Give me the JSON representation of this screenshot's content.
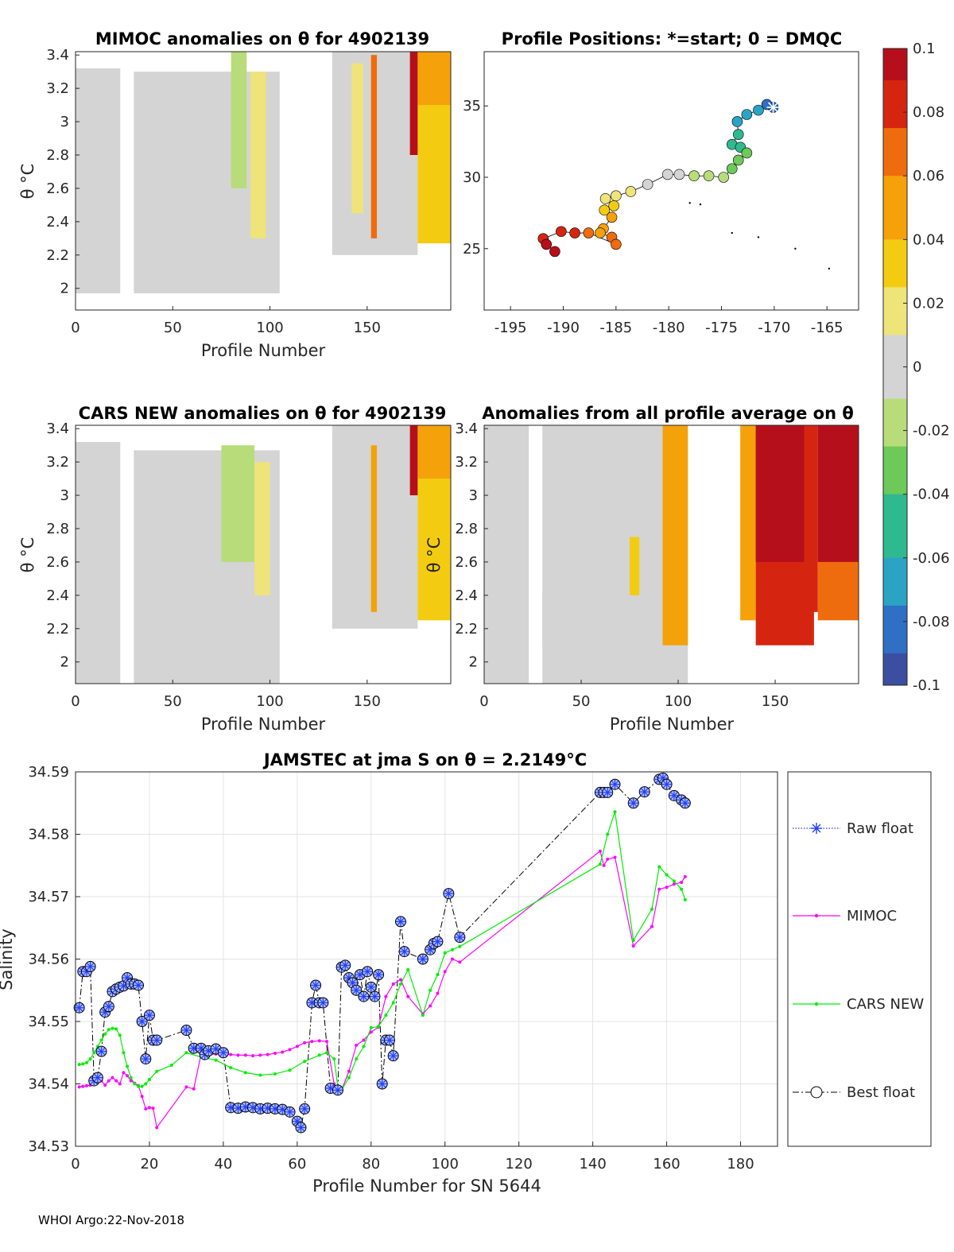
{
  "footer": "WHOI Argo:22-Nov-2018",
  "colors": {
    "raw": "#2340ff",
    "mimoc": "#ff00ff",
    "cars": "#00ee00",
    "best": "#000000",
    "colormap": [
      "#3b4ea0",
      "#2f6fc4",
      "#2aa3c5",
      "#2fb98e",
      "#6cc95a",
      "#b8dc7a",
      "#d4d4d4",
      "#eee47a",
      "#f3cc11",
      "#f5a10a",
      "#ef6c0e",
      "#d52510",
      "#b50f1c"
    ]
  },
  "chart_data": [
    {
      "id": "mimoc",
      "type": "heatmap",
      "title": "MIMOC anomalies on θ  for 4902139",
      "xlabel": "Profile Number",
      "ylabel": "θ °C",
      "xticks": [
        "0",
        "50",
        "100",
        "150"
      ],
      "yticks": [
        "2",
        "2.2",
        "2.4",
        "2.6",
        "2.8",
        "3",
        "3.2",
        "3.4"
      ],
      "xlim": [
        0,
        193
      ],
      "ylim": [
        1.87,
        3.42
      ],
      "blocks": [
        {
          "x": [
            0,
            23
          ],
          "y": [
            1.97,
            3.32
          ],
          "v": 0.0
        },
        {
          "x": [
            3,
            20
          ],
          "y": [
            2.0,
            2.5
          ],
          "v": -0.006
        },
        {
          "x": [
            30,
            105
          ],
          "y": [
            1.97,
            3.3
          ],
          "v": -0.003
        },
        {
          "x": [
            80,
            88
          ],
          "y": [
            2.6,
            3.42
          ],
          "v": -0.012
        },
        {
          "x": [
            90,
            98
          ],
          "y": [
            2.3,
            3.3
          ],
          "v": 0.012
        },
        {
          "x": [
            132,
            176
          ],
          "y": [
            2.2,
            3.42
          ],
          "v": 0.003
        },
        {
          "x": [
            142,
            148
          ],
          "y": [
            2.45,
            3.35
          ],
          "v": 0.015
        },
        {
          "x": [
            152,
            155
          ],
          "y": [
            2.3,
            3.4
          ],
          "v": 0.06
        },
        {
          "x": [
            172,
            176
          ],
          "y": [
            2.8,
            3.42
          ],
          "v": 0.095
        },
        {
          "x": [
            176,
            193
          ],
          "y": [
            2.27,
            3.42
          ],
          "v": 0.04
        },
        {
          "x": [
            176,
            193
          ],
          "y": [
            3.1,
            3.42
          ],
          "v": 0.055
        }
      ]
    },
    {
      "id": "positions",
      "type": "scatter",
      "title": "Profile Positions: *=start; 0 = DMQC",
      "xticks": [
        "-195",
        "-190",
        "-185",
        "-180",
        "-175",
        "-170",
        "-165"
      ],
      "yticks": [
        "25",
        "30",
        "35"
      ],
      "xlim": [
        -197.5,
        -162
      ],
      "ylim": [
        20.7,
        38.8
      ],
      "points": [
        [
          -170.1,
          34.9
        ],
        [
          -170.7,
          35.1
        ],
        [
          -171.5,
          34.7
        ],
        [
          -172.6,
          34.4
        ],
        [
          -173.5,
          33.9
        ],
        [
          -173.4,
          33.0
        ],
        [
          -174,
          32.3
        ],
        [
          -173.2,
          32.1
        ],
        [
          -172.6,
          31.7
        ],
        [
          -173.4,
          31.2
        ],
        [
          -174,
          30.6
        ],
        [
          -174.8,
          30.0
        ],
        [
          -176.2,
          30.1
        ],
        [
          -177.6,
          30.1
        ],
        [
          -179.0,
          30.2
        ],
        [
          -180.1,
          30.2
        ],
        [
          -182.0,
          29.5
        ],
        [
          -183.6,
          29.0
        ],
        [
          -185.0,
          28.7
        ],
        [
          -186.0,
          28.5
        ],
        [
          -185.2,
          28.0
        ],
        [
          -186.1,
          27.7
        ],
        [
          -185.4,
          27.2
        ],
        [
          -186.2,
          26.4
        ],
        [
          -186.5,
          26.1
        ],
        [
          -185.4,
          25.8
        ],
        [
          -185.0,
          25.3
        ],
        [
          -187.6,
          26.1
        ],
        [
          -188.9,
          26.1
        ],
        [
          -190.2,
          26.2
        ],
        [
          -191.9,
          25.7
        ],
        [
          -191.6,
          25.3
        ],
        [
          -190.8,
          24.8
        ]
      ],
      "dots": [
        [
          -178,
          28.2
        ],
        [
          -177,
          28.1
        ],
        [
          -174,
          26.1
        ],
        [
          -171.5,
          25.8
        ],
        [
          -168,
          25.0
        ],
        [
          -164.8,
          23.6
        ]
      ]
    },
    {
      "id": "cars",
      "type": "heatmap",
      "title": "CARS NEW anomalies on θ for 4902139",
      "xlabel": "Profile Number",
      "ylabel": "θ °C",
      "xticks": [
        "0",
        "50",
        "100",
        "150"
      ],
      "yticks": [
        "2",
        "2.2",
        "2.4",
        "2.6",
        "2.8",
        "3",
        "3.2",
        "3.4"
      ],
      "xlim": [
        0,
        193
      ],
      "ylim": [
        1.87,
        3.42
      ],
      "blocks": [
        {
          "x": [
            0,
            23
          ],
          "y": [
            1.87,
            3.32
          ],
          "v": -0.004
        },
        {
          "x": [
            3,
            20
          ],
          "y": [
            2.2,
            3.2
          ],
          "v": -0.007
        },
        {
          "x": [
            30,
            105
          ],
          "y": [
            1.87,
            3.27
          ],
          "v": -0.003
        },
        {
          "x": [
            75,
            92
          ],
          "y": [
            2.6,
            3.3
          ],
          "v": -0.01
        },
        {
          "x": [
            92,
            100
          ],
          "y": [
            2.4,
            3.2
          ],
          "v": 0.012
        },
        {
          "x": [
            132,
            176
          ],
          "y": [
            2.2,
            3.42
          ],
          "v": 0.003
        },
        {
          "x": [
            152,
            155
          ],
          "y": [
            2.3,
            3.3
          ],
          "v": 0.05
        },
        {
          "x": [
            172,
            176
          ],
          "y": [
            3.0,
            3.42
          ],
          "v": 0.095
        },
        {
          "x": [
            176,
            193
          ],
          "y": [
            2.25,
            3.42
          ],
          "v": 0.035
        },
        {
          "x": [
            176,
            193
          ],
          "y": [
            3.1,
            3.42
          ],
          "v": 0.055
        }
      ]
    },
    {
      "id": "allprof",
      "type": "heatmap",
      "title": "Anomalies from all profile average on θ",
      "xlabel": "Profile Number",
      "ylabel": "θ °C",
      "xticks": [
        "0",
        "50",
        "100",
        "150"
      ],
      "yticks": [
        "2",
        "2.2",
        "2.4",
        "2.6",
        "2.8",
        "3",
        "3.2",
        "3.4"
      ],
      "xlim": [
        0,
        193
      ],
      "ylim": [
        1.87,
        3.42
      ],
      "blocks": [
        {
          "x": [
            0,
            23
          ],
          "y": [
            1.87,
            3.42
          ],
          "v": 0.0
        },
        {
          "x": [
            30,
            105
          ],
          "y": [
            1.87,
            3.42
          ],
          "v": 0.0
        },
        {
          "x": [
            30,
            60
          ],
          "y": [
            2.1,
            2.42
          ],
          "v": -0.006
        },
        {
          "x": [
            75,
            80
          ],
          "y": [
            2.4,
            2.75
          ],
          "v": 0.03
        },
        {
          "x": [
            92,
            105
          ],
          "y": [
            2.1,
            3.42
          ],
          "v": 0.045
        },
        {
          "x": [
            132,
            140
          ],
          "y": [
            2.25,
            3.42
          ],
          "v": 0.045
        },
        {
          "x": [
            140,
            170
          ],
          "y": [
            2.1,
            3.42
          ],
          "v": 0.08
        },
        {
          "x": [
            140,
            165
          ],
          "y": [
            2.6,
            3.42
          ],
          "v": 0.1
        },
        {
          "x": [
            165,
            172
          ],
          "y": [
            2.3,
            3.42
          ],
          "v": 0.09
        },
        {
          "x": [
            172,
            193
          ],
          "y": [
            2.25,
            3.42
          ],
          "v": 0.07
        },
        {
          "x": [
            172,
            193
          ],
          "y": [
            2.6,
            3.42
          ],
          "v": 0.1
        }
      ]
    },
    {
      "id": "colorbar",
      "type": "heatmap",
      "ticks": [
        "0.1",
        "0.08",
        "0.06",
        "0.04",
        "0.02",
        "0",
        "-0.02",
        "-0.04",
        "-0.06",
        "-0.08",
        "-0.1"
      ],
      "range": [
        -0.1,
        0.1
      ]
    },
    {
      "id": "salinity",
      "type": "line",
      "title": "JAMSTEC at jma S on θ = 2.2149°C",
      "xlabel": "Profile Number for SN 5644",
      "ylabel": "Salinity",
      "xticks": [
        "0",
        "20",
        "40",
        "60",
        "80",
        "100",
        "120",
        "140",
        "160",
        "180"
      ],
      "yticks": [
        "34.53",
        "34.54",
        "34.55",
        "34.56",
        "34.57",
        "34.58",
        "34.59"
      ],
      "xlim": [
        0,
        190
      ],
      "ylim": [
        34.53,
        34.59
      ],
      "series": [
        {
          "name": "Raw float",
          "style": "dotted-star"
        },
        {
          "name": "MIMOC",
          "x": [
            1,
            2,
            3,
            4,
            5,
            6,
            7,
            8,
            9,
            10,
            11,
            12,
            13,
            14,
            15,
            16,
            17,
            18,
            19,
            20,
            21,
            22,
            30,
            32,
            34,
            36,
            38,
            40,
            42,
            44,
            46,
            48,
            50,
            52,
            54,
            56,
            58,
            60,
            62,
            64,
            66,
            68,
            70,
            71,
            72,
            74,
            76,
            78,
            80,
            82,
            84,
            86,
            88,
            90,
            94,
            96,
            98,
            100,
            102,
            104,
            142,
            143,
            144,
            146,
            151,
            156,
            158,
            160,
            162,
            164,
            165
          ],
          "y": [
            34.5395,
            34.5396,
            34.5397,
            34.5398,
            34.5405,
            34.5405,
            34.5405,
            34.5398,
            34.5405,
            34.541,
            34.5405,
            34.54,
            34.5418,
            34.5413,
            34.5405,
            34.5401,
            34.5397,
            34.538,
            34.536,
            34.5362,
            34.5361,
            34.533,
            34.5395,
            34.5392,
            34.5448,
            34.5447,
            34.5448,
            34.5448,
            34.5447,
            34.5446,
            34.5446,
            34.5445,
            34.5446,
            34.5447,
            34.5449,
            34.5451,
            34.5455,
            34.546,
            34.5466,
            34.5468,
            34.5469,
            34.5468,
            34.54,
            34.539,
            34.539,
            34.542,
            34.5462,
            34.547,
            34.5483,
            34.5491,
            34.554,
            34.556,
            34.5567,
            34.554,
            34.5512,
            34.5525,
            34.5545,
            34.558,
            34.56,
            34.5595,
            34.5773,
            34.575,
            34.576,
            34.5763,
            34.5621,
            34.5652,
            34.5712,
            34.5715,
            34.572,
            34.5723,
            34.5732
          ]
        },
        {
          "name": "CARS NEW",
          "x": [
            1,
            2,
            3,
            4,
            5,
            6,
            7,
            8,
            9,
            10,
            11,
            12,
            13,
            14,
            15,
            16,
            17,
            18,
            19,
            20,
            22,
            26,
            30,
            34,
            38,
            42,
            46,
            50,
            54,
            58,
            62,
            66,
            68,
            70,
            71,
            72,
            74,
            76,
            78,
            80,
            82,
            84,
            86,
            88,
            90,
            94,
            96,
            98,
            100,
            102,
            104,
            142,
            144,
            146,
            151,
            156,
            158,
            160,
            162,
            164,
            165
          ],
          "y": [
            34.5431,
            34.5432,
            34.5434,
            34.544,
            34.545,
            34.546,
            34.547,
            34.548,
            34.5487,
            34.5489,
            34.5488,
            34.5478,
            34.545,
            34.5428,
            34.541,
            34.54,
            34.5396,
            34.5396,
            34.54,
            34.5407,
            34.542,
            34.543,
            34.545,
            34.5443,
            34.5438,
            34.5426,
            34.5418,
            34.5414,
            34.5416,
            34.5422,
            34.5436,
            34.5446,
            34.545,
            34.544,
            34.5395,
            34.539,
            34.541,
            34.544,
            34.546,
            34.549,
            34.5492,
            34.551,
            34.553,
            34.556,
            34.5583,
            34.551,
            34.555,
            34.5575,
            34.561,
            34.5615,
            34.562,
            34.5752,
            34.58,
            34.5836,
            34.563,
            34.568,
            34.5748,
            34.5735,
            34.5725,
            34.5712,
            34.5695
          ]
        },
        {
          "name": "Best float",
          "x": [
            1,
            2,
            3,
            4,
            5,
            6,
            7,
            8,
            9,
            10,
            11,
            12,
            13,
            14,
            15,
            16,
            17,
            18,
            19,
            20,
            21,
            22,
            30,
            32,
            34,
            35,
            36,
            38,
            40,
            42,
            44,
            46,
            48,
            50,
            52,
            54,
            56,
            58,
            60,
            61,
            62,
            64,
            65,
            66,
            67,
            69,
            71,
            72,
            73,
            74,
            75,
            76,
            77,
            78,
            79,
            80,
            81,
            82,
            83,
            84,
            85,
            86,
            88,
            89,
            94,
            96,
            97,
            98,
            101,
            104,
            142,
            143,
            144,
            146,
            151,
            154,
            158,
            159,
            160,
            162,
            164,
            165
          ],
          "y": [
            34.5522,
            34.558,
            34.558,
            34.5588,
            34.5405,
            34.541,
            34.5452,
            34.5515,
            34.5524,
            34.5548,
            34.5552,
            34.5555,
            34.5557,
            34.557,
            34.556,
            34.556,
            34.5558,
            34.55,
            34.544,
            34.551,
            34.547,
            34.547,
            34.5486,
            34.5457,
            34.5457,
            34.5447,
            34.5453,
            34.5456,
            34.545,
            34.5362,
            34.5361,
            34.5363,
            34.5362,
            34.536,
            34.5361,
            34.536,
            34.5359,
            34.5355,
            34.534,
            34.533,
            34.536,
            34.553,
            34.5558,
            34.553,
            34.553,
            34.5393,
            34.539,
            34.5587,
            34.559,
            34.557,
            34.5562,
            34.555,
            34.5575,
            34.554,
            34.558,
            34.5555,
            34.554,
            34.5575,
            34.54,
            34.547,
            34.547,
            34.5445,
            34.566,
            34.5612,
            34.56,
            34.5615,
            34.5625,
            34.5628,
            34.5705,
            34.5635,
            34.5867,
            34.5867,
            34.5867,
            34.588,
            34.585,
            34.5868,
            34.5888,
            34.589,
            34.588,
            34.5862,
            34.5855,
            34.585
          ]
        }
      ]
    }
  ]
}
